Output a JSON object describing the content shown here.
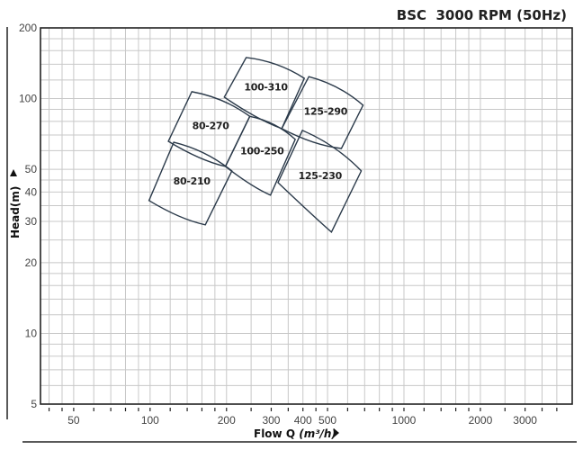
{
  "chart_data": {
    "type": "line",
    "title": "BSC  3000 RPM (50Hz)",
    "xlabel": "Flow Q",
    "xlabel_unit": "(m³/h)",
    "ylabel": "Head(m)",
    "x_scale": "log",
    "y_scale": "log",
    "xlim": [
      37,
      4600
    ],
    "ylim": [
      5,
      200
    ],
    "grid": true,
    "x_ticks": [
      50,
      100,
      200,
      300,
      400,
      500,
      1000,
      2000,
      3000
    ],
    "y_ticks": [
      5,
      10,
      20,
      30,
      40,
      50,
      100,
      200
    ],
    "line_color": "#2b3a4a",
    "regions": [
      {
        "name": "100-310",
        "corners": [
          [
            239,
            149.5
          ],
          [
            405,
            122
          ],
          [
            330,
            74.5
          ],
          [
            196,
            101.4
          ]
        ]
      },
      {
        "name": "125-290",
        "corners": [
          [
            422,
            124
          ],
          [
            690,
            93.7
          ],
          [
            567,
            61.3
          ],
          [
            330,
            74.5
          ]
        ]
      },
      {
        "name": "80-270",
        "corners": [
          [
            146,
            107
          ],
          [
            247,
            84
          ],
          [
            198,
            51.4
          ],
          [
            118,
            65.8
          ]
        ]
      },
      {
        "name": "100-250",
        "corners": [
          [
            247,
            84
          ],
          [
            373,
            67
          ],
          [
            298,
            38.8
          ],
          [
            198,
            51.4
          ]
        ]
      },
      {
        "name": "125-230",
        "corners": [
          [
            398,
            73.2
          ],
          [
            679,
            49.2
          ],
          [
            518,
            27.0
          ],
          [
            319,
            43.9
          ]
        ]
      },
      {
        "name": "80-210",
        "corners": [
          [
            124,
            65.2
          ],
          [
            210,
            49.2
          ],
          [
            165,
            29.0
          ],
          [
            99,
            36.8
          ]
        ]
      }
    ]
  }
}
